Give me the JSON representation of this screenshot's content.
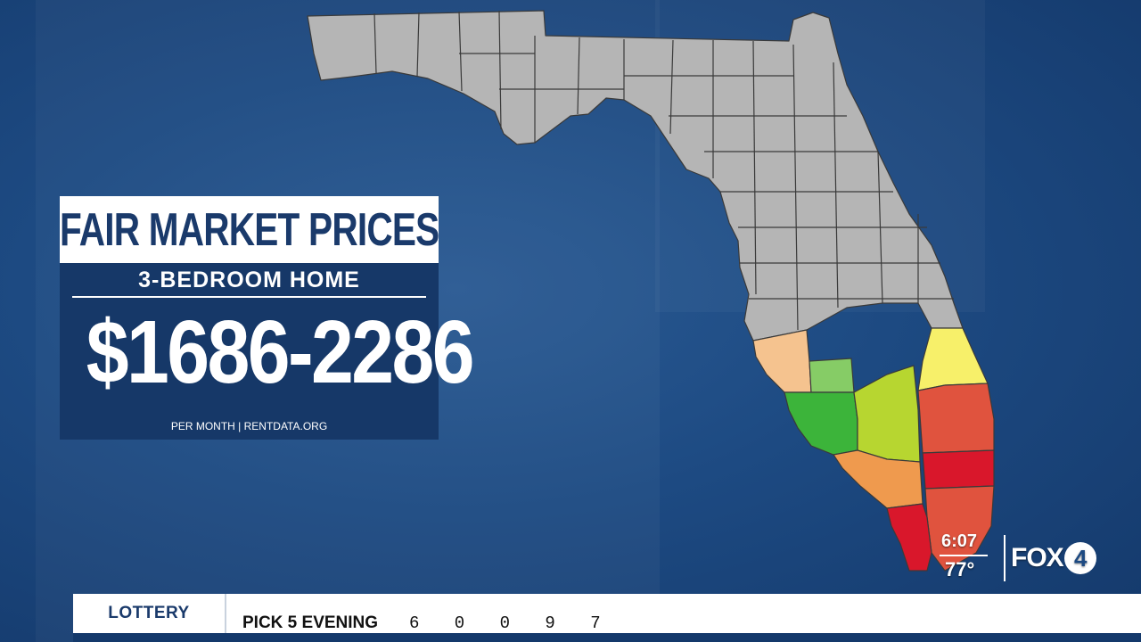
{
  "graphic": {
    "title": "FAIR MARKET PRICES",
    "subtitle": "3-BEDROOM HOME",
    "price_range": "$1686-2286",
    "source": "PER MONTH | RENTDATA.ORG"
  },
  "map": {
    "base_color": "#b5b5b5",
    "highlight_colors": {
      "light_orange": "#f5c38f",
      "light_green": "#86cc66",
      "green": "#3cb43a",
      "yellow_green": "#b7d630",
      "yellow": "#f7f06a",
      "orange": "#ef9a4e",
      "red_orange": "#e0533e",
      "red": "#d9172b"
    }
  },
  "station_bug": {
    "time": "6:07",
    "temperature": "77°",
    "logo_text": "FOX",
    "logo_number": "4"
  },
  "ticker": {
    "label": "LOTTERY",
    "game": "PICK 5 EVENING",
    "numbers": "6 0 0 9 7"
  }
}
